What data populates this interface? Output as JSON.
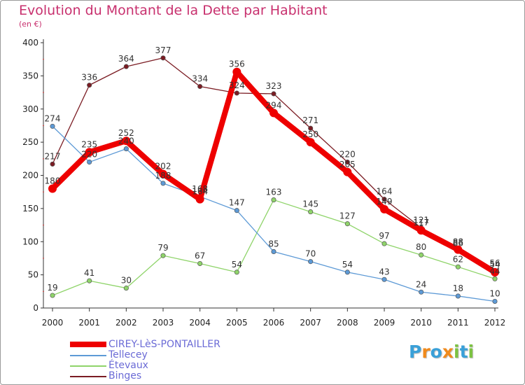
{
  "title": "Evolution du Montant de la Dette par Habitant",
  "subtitle": "(en €)",
  "logo": {
    "text": "Proxiti",
    "letters": [
      "P",
      "r",
      "o",
      "x",
      "i",
      "t",
      "i"
    ],
    "colors": [
      "#3aa0d8",
      "#f08a1c",
      "#3aa0d8",
      "#f08a1c",
      "#7cc242",
      "#3aa0d8",
      "#7cc242"
    ]
  },
  "chart_data": {
    "type": "line",
    "x": [
      "2000",
      "2001",
      "2002",
      "2003",
      "2004",
      "2005",
      "2006",
      "2007",
      "2008",
      "2009",
      "2010",
      "2011",
      "2012"
    ],
    "ylim": [
      0,
      400
    ],
    "yticks": [
      "0",
      "50",
      "100",
      "150",
      "200",
      "250",
      "300",
      "350",
      "400"
    ],
    "grid": false,
    "legend_position": "bottom-left",
    "series": [
      {
        "name": "Binges",
        "color": "#7b1c23",
        "values": [
          217,
          336,
          364,
          377,
          334,
          324,
          323,
          271,
          220,
          164,
          121,
          86,
          56
        ]
      },
      {
        "name": "Étevaux",
        "color": "#8fd46a",
        "values": [
          19,
          41,
          30,
          79,
          67,
          54,
          163,
          145,
          127,
          97,
          80,
          62,
          44
        ]
      },
      {
        "name": "Tellecey",
        "color": "#5d9ad6",
        "values": [
          274,
          220,
          240,
          188,
          168,
          147,
          85,
          70,
          54,
          43,
          24,
          18,
          10
        ]
      },
      {
        "name": "CIREY-LèS-PONTAILLER",
        "color": "#ee0000",
        "values": [
          180,
          235,
          252,
          202,
          164,
          356,
          294,
          250,
          205,
          149,
          117,
          88,
          54
        ]
      }
    ],
    "data_labels": [
      [
        "217",
        "336",
        "364",
        "377",
        "334",
        "324",
        "323",
        "271",
        "220",
        "164",
        "121",
        "86",
        "56"
      ],
      [
        "19",
        "41",
        "30",
        "79",
        "67",
        "54",
        "163",
        "145",
        "127",
        "97",
        "80",
        "62",
        "44"
      ],
      [
        "274",
        "220",
        "240",
        "188",
        "168",
        "147",
        "85",
        "70",
        "54",
        "43",
        "24",
        "18",
        "10"
      ],
      [
        "180",
        "235",
        "252",
        "202",
        "164",
        "356",
        "294",
        "250",
        "205",
        "149",
        "117",
        "88",
        "54"
      ]
    ],
    "legend_order": [
      3,
      2,
      1,
      0
    ]
  }
}
